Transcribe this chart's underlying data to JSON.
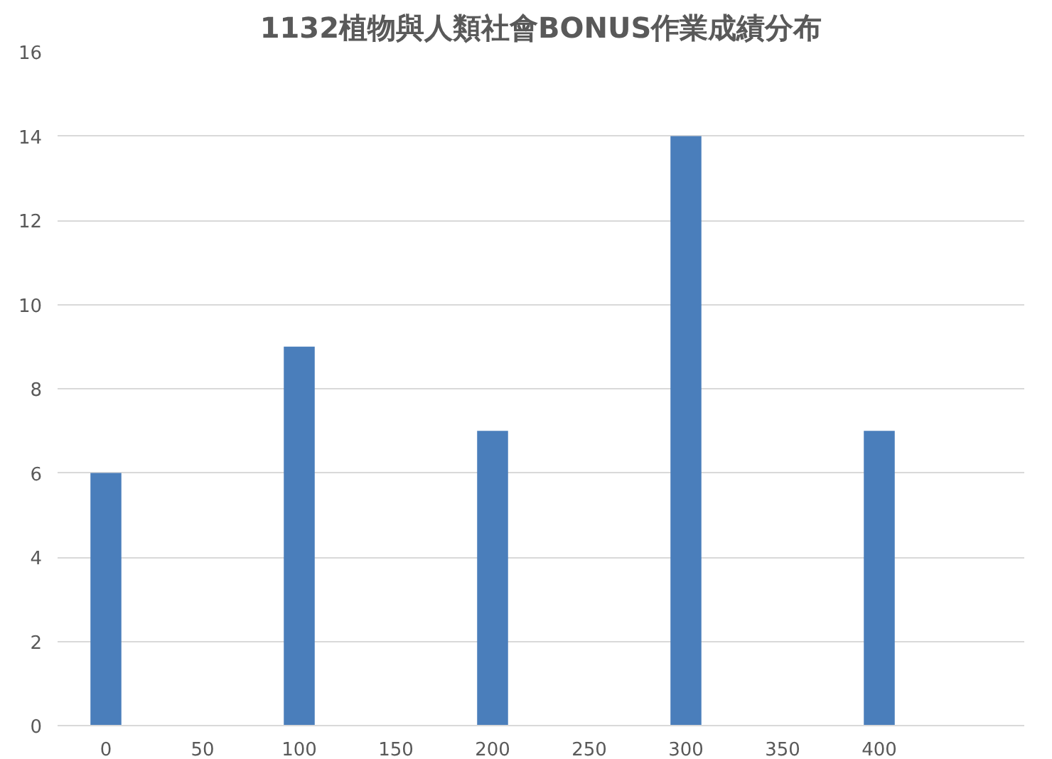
{
  "chart_data": {
    "type": "bar",
    "title": "1132植物與人類社會BONUS作業成績分布",
    "categories": [
      "0",
      "50",
      "100",
      "150",
      "200",
      "250",
      "300",
      "350",
      "400",
      null
    ],
    "values": [
      6,
      0,
      9,
      0,
      7,
      0,
      14,
      0,
      7,
      0
    ],
    "color": "#4a7ebb",
    "ylim": [
      0,
      16
    ],
    "yticks": [
      0,
      2,
      4,
      6,
      8,
      10,
      12,
      14,
      16
    ],
    "grid": "y"
  }
}
